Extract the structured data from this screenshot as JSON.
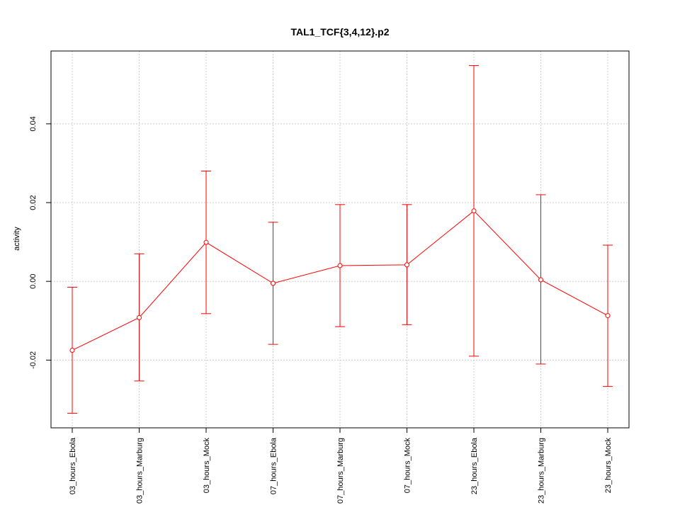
{
  "chart_data": {
    "type": "line",
    "title": "TAL1_TCF{3,4,12}.p2",
    "xlabel": "",
    "ylabel": "activity",
    "categories": [
      "03_hours_Ebola",
      "03_hours_Marburg",
      "03_hours_Mock",
      "07_hours_Ebola",
      "07_hours_Marburg",
      "07_hours_Mock",
      "23_hours_Ebola",
      "23_hours_Marburg",
      "23_hours_Mock"
    ],
    "series": [
      {
        "values": [
          -0.0175,
          -0.0092,
          0.0099,
          -0.0005,
          0.004,
          0.0042,
          0.0179,
          0.0004,
          -0.0087
        ],
        "lower": [
          -0.0335,
          -0.0253,
          -0.0082,
          -0.016,
          -0.0115,
          -0.011,
          -0.019,
          -0.021,
          -0.0267
        ],
        "upper": [
          -0.0015,
          0.007,
          0.028,
          0.015,
          0.0195,
          0.0195,
          0.0548,
          0.022,
          0.0092
        ]
      }
    ],
    "yticks": [
      -0.02,
      0.0,
      0.02,
      0.04
    ],
    "ytick_labels": [
      "-0.02",
      "0.00",
      "0.02",
      "0.04"
    ],
    "ylim": [
      -0.0372,
      0.0585
    ],
    "grid": true,
    "colors": {
      "series": "#ff0000",
      "grid": "#cccccc",
      "axis": "#000000"
    }
  }
}
